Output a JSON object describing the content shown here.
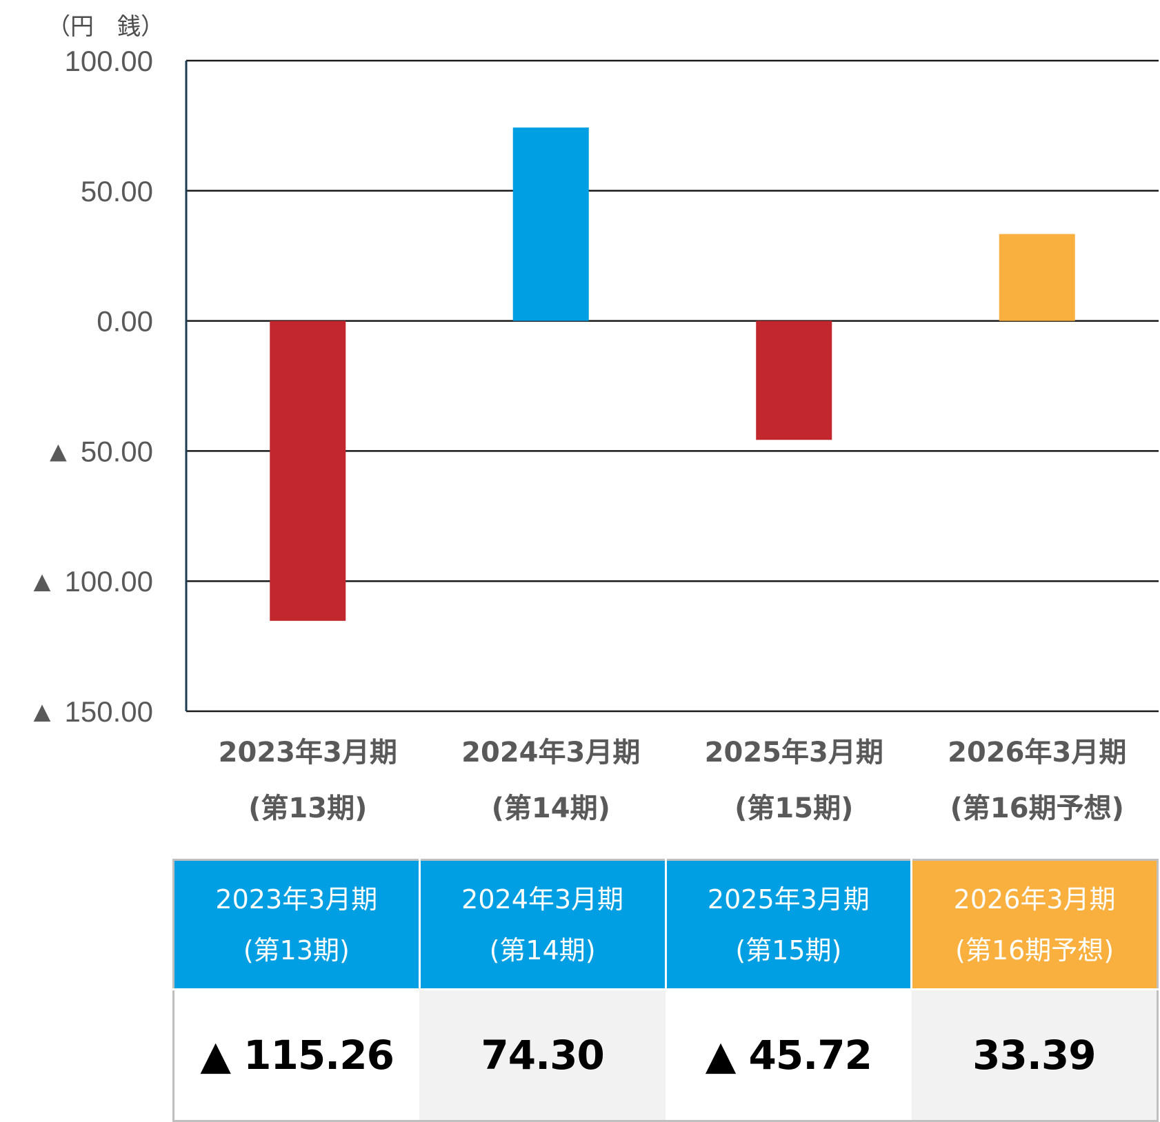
{
  "chart_data": {
    "type": "bar",
    "unit_label": "（円　銭）",
    "categories": [
      [
        "2023年3月期",
        "(第13期)"
      ],
      [
        "2024年3月期",
        "(第14期)"
      ],
      [
        "2025年3月期",
        "(第15期)"
      ],
      [
        "2026年3月期",
        "(第16期予想)"
      ]
    ],
    "values": [
      -115.26,
      74.3,
      -45.72,
      33.39
    ],
    "bar_colors": [
      "#c1272d",
      "#009fe3",
      "#c1272d",
      "#f9b03e"
    ],
    "ylim": [
      -150,
      100
    ],
    "yticks": [
      100,
      50,
      0,
      -50,
      -100,
      -150
    ],
    "ytick_labels": [
      "100.00",
      "50.00",
      "0.00",
      "▲ 50.00",
      "▲ 100.00",
      "▲ 150.00"
    ],
    "grid": true
  },
  "table": {
    "headers": [
      {
        "line1": "2023年3月期",
        "line2": "(第13期)",
        "color": "#009fe3"
      },
      {
        "line1": "2024年3月期",
        "line2": "(第14期)",
        "color": "#009fe3"
      },
      {
        "line1": "2025年3月期",
        "line2": "(第15期)",
        "color": "#009fe3"
      },
      {
        "line1": "2026年3月期",
        "line2": "(第16期予想)",
        "color": "#f9b03e"
      }
    ],
    "values": [
      "▲ 115.26",
      "74.30",
      "▲ 45.72",
      "33.39"
    ],
    "cell_backgrounds": [
      "#ffffff",
      "#f2f2f2",
      "#ffffff",
      "#f2f2f2"
    ]
  }
}
